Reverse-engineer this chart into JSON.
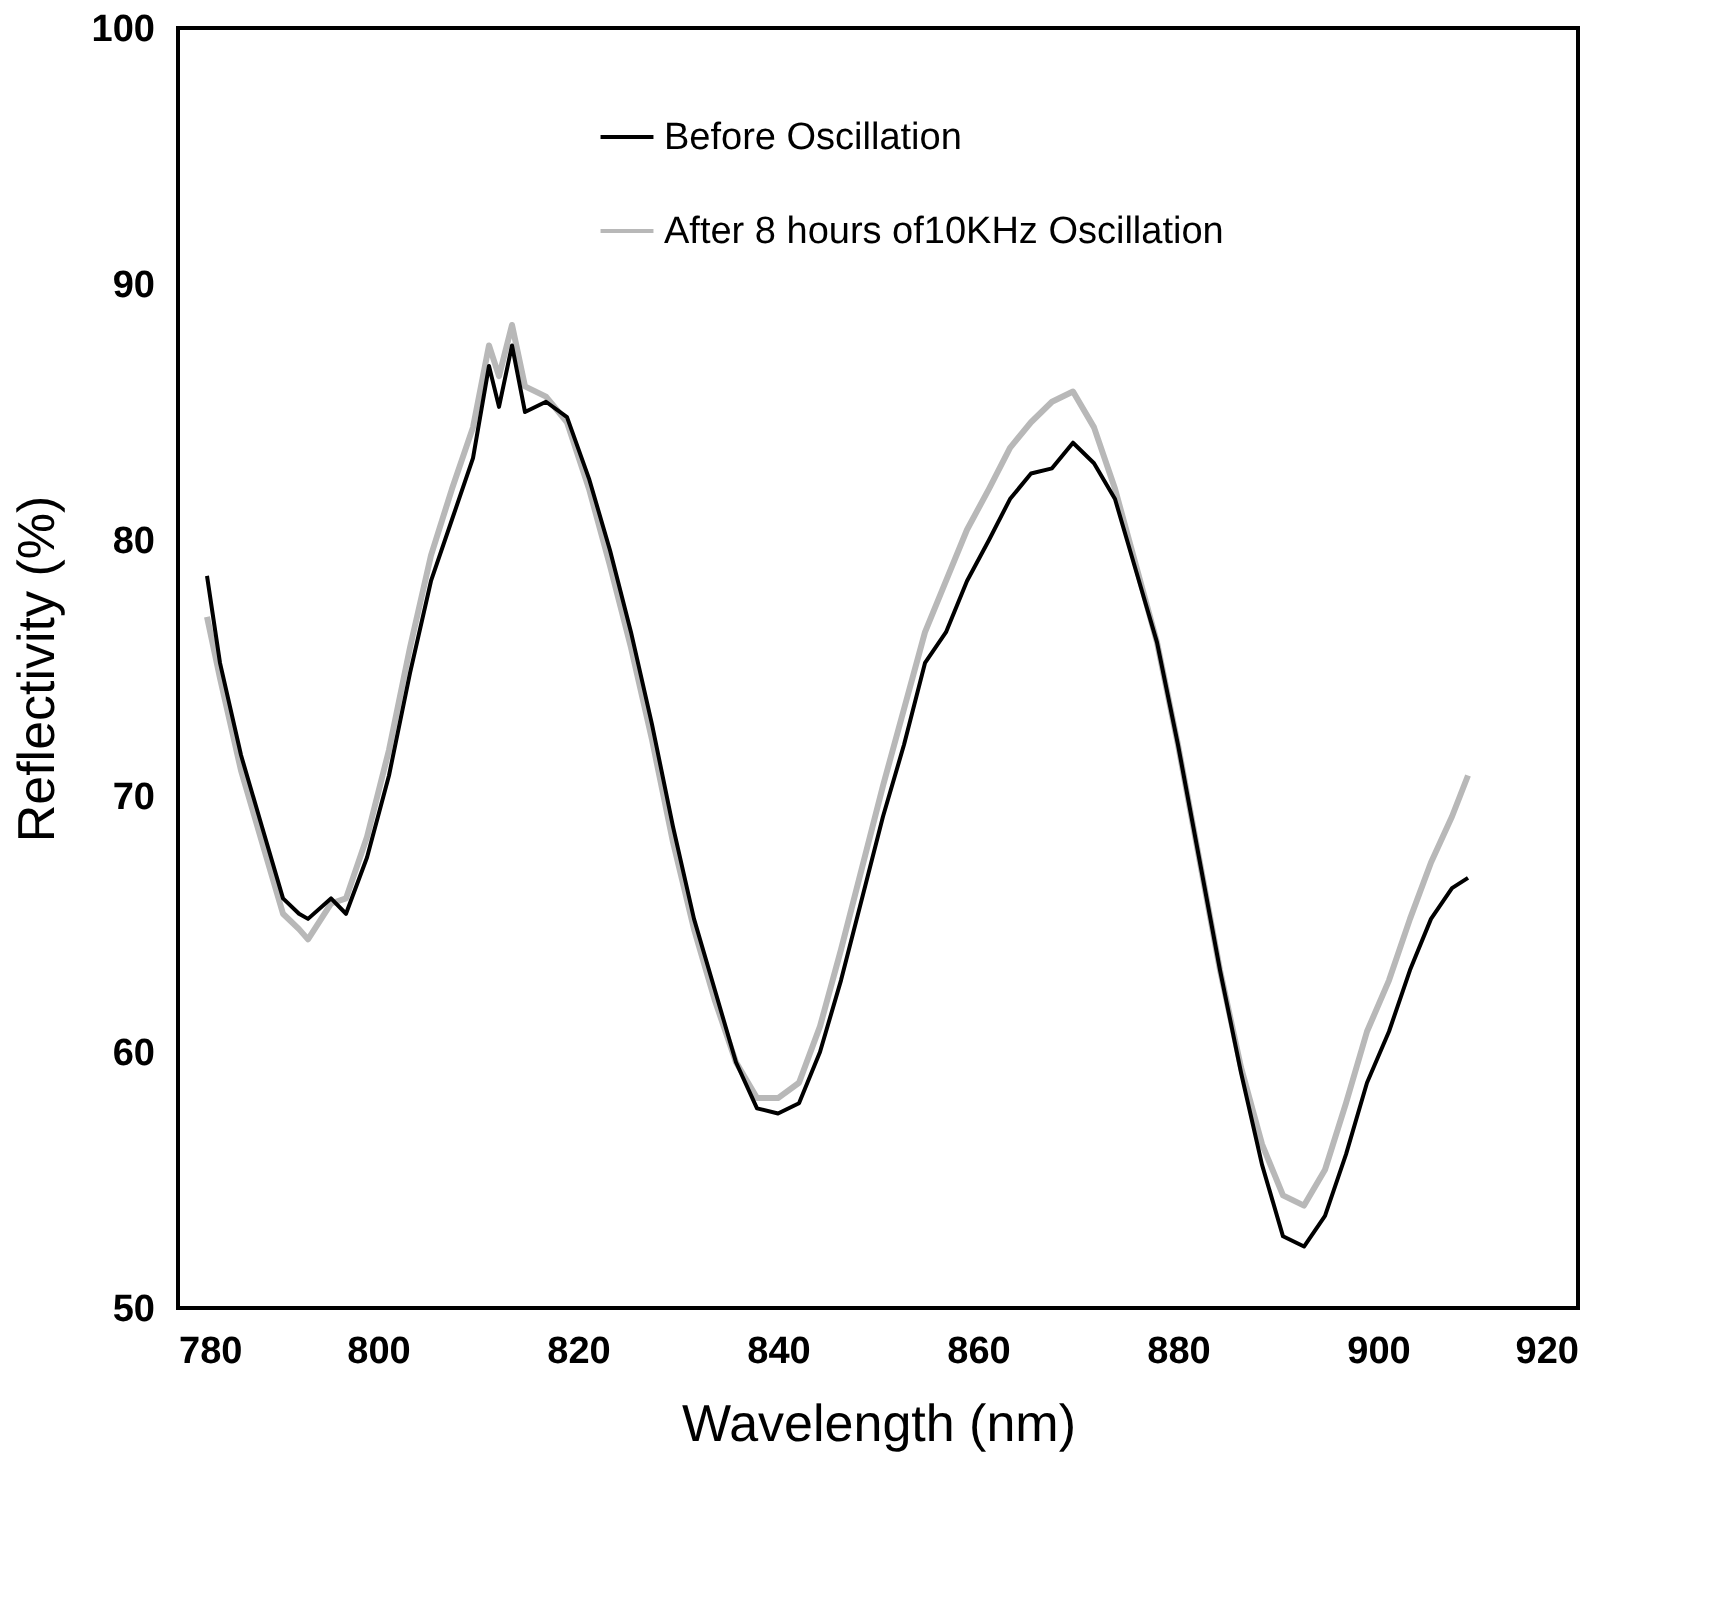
{
  "chart_data": {
    "type": "line",
    "xlabel": "Wavelength (nm)",
    "ylabel": "Reflectivity (%)",
    "x": [
      782.9,
      784.2,
      786.3,
      788.4,
      790.5,
      792.1,
      793.0,
      795.3,
      796.8,
      798.9,
      801.1,
      803.2,
      805.3,
      807.4,
      809.5,
      811.1,
      812.1,
      813.4,
      814.7,
      816.8,
      818.9,
      821.1,
      823.2,
      825.3,
      827.4,
      829.5,
      831.6,
      833.7,
      835.8,
      837.9,
      840.0,
      842.1,
      844.2,
      846.3,
      848.4,
      850.5,
      852.6,
      854.7,
      856.8,
      858.9,
      861.1,
      863.2,
      865.3,
      867.4,
      869.5,
      871.6,
      873.7,
      875.8,
      877.9,
      880.0,
      882.1,
      884.2,
      886.3,
      888.4,
      890.5,
      892.6,
      894.7,
      896.8,
      898.9,
      901.1,
      903.2,
      905.3,
      907.4,
      909.0
    ],
    "series": [
      {
        "name": "Before Oscillation",
        "color": "#000000",
        "values": [
          78.6,
          75.2,
          71.6,
          68.8,
          66.0,
          65.4,
          65.2,
          66.0,
          65.4,
          67.6,
          70.8,
          74.8,
          78.4,
          80.8,
          83.2,
          86.8,
          85.2,
          87.6,
          85.0,
          85.4,
          84.8,
          82.4,
          79.6,
          76.4,
          72.8,
          68.8,
          65.2,
          62.4,
          59.6,
          57.8,
          57.6,
          58.0,
          60.0,
          62.8,
          66.0,
          69.2,
          72.0,
          75.2,
          76.4,
          78.4,
          80.0,
          81.6,
          82.6,
          82.8,
          83.8,
          83.0,
          81.6,
          78.8,
          76.0,
          72.0,
          67.6,
          63.2,
          59.2,
          55.6,
          52.8,
          52.4,
          53.6,
          56.0,
          58.8,
          60.8,
          63.2,
          65.2,
          66.4,
          66.8
        ]
      },
      {
        "name": "After 8 hours of10KHz Oscillation",
        "color": "#b8b8b8",
        "values": [
          77.0,
          74.6,
          71.0,
          68.2,
          65.4,
          64.8,
          64.4,
          65.8,
          66.0,
          68.4,
          71.8,
          75.8,
          79.4,
          82.0,
          84.4,
          87.6,
          86.4,
          88.4,
          86.0,
          85.6,
          84.6,
          82.0,
          79.0,
          75.8,
          72.2,
          68.2,
          64.8,
          62.0,
          59.6,
          58.2,
          58.2,
          58.8,
          61.0,
          64.0,
          67.2,
          70.4,
          73.4,
          76.4,
          78.4,
          80.4,
          82.0,
          83.6,
          84.6,
          85.4,
          85.8,
          84.4,
          82.0,
          79.0,
          76.0,
          72.0,
          67.6,
          63.2,
          59.4,
          56.4,
          54.4,
          54.0,
          55.4,
          58.0,
          60.8,
          62.8,
          65.2,
          67.4,
          69.2,
          70.8
        ]
      }
    ],
    "xlim": [
      780,
      920
    ],
    "xticks": [
      780,
      800,
      820,
      840,
      860,
      880,
      900,
      920
    ],
    "ylim": [
      50,
      100
    ],
    "yticks": [
      50,
      60,
      70,
      80,
      90,
      100
    ],
    "grid": false,
    "legend": "top",
    "marker": "none",
    "line_style": "solid"
  }
}
